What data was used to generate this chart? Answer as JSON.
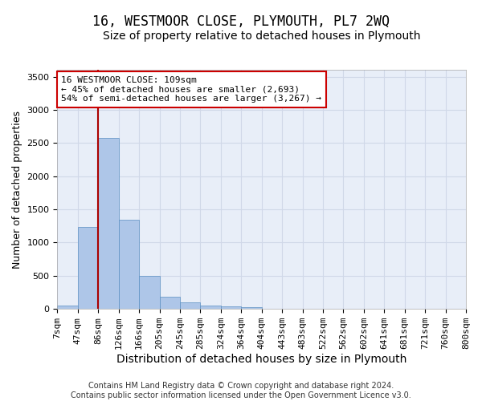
{
  "title": "16, WESTMOOR CLOSE, PLYMOUTH, PL7 2WQ",
  "subtitle": "Size of property relative to detached houses in Plymouth",
  "xlabel": "Distribution of detached houses by size in Plymouth",
  "ylabel": "Number of detached properties",
  "footer_line1": "Contains HM Land Registry data © Crown copyright and database right 2024.",
  "footer_line2": "Contains public sector information licensed under the Open Government Licence v3.0.",
  "bin_labels": [
    "7sqm",
    "47sqm",
    "86sqm",
    "126sqm",
    "166sqm",
    "205sqm",
    "245sqm",
    "285sqm",
    "324sqm",
    "364sqm",
    "404sqm",
    "443sqm",
    "483sqm",
    "522sqm",
    "562sqm",
    "602sqm",
    "641sqm",
    "681sqm",
    "721sqm",
    "760sqm",
    "800sqm"
  ],
  "bar_heights": [
    50,
    1230,
    2580,
    1340,
    500,
    190,
    100,
    50,
    40,
    30,
    0,
    0,
    0,
    0,
    0,
    0,
    0,
    0,
    0,
    0
  ],
  "bar_color": "#aec6e8",
  "bar_edge_color": "#5a8fc2",
  "grid_color": "#d0d8e8",
  "background_color": "#e8eef8",
  "vline_x": 2.0,
  "vline_color": "#aa0000",
  "annotation_text": "16 WESTMOOR CLOSE: 109sqm\n← 45% of detached houses are smaller (2,693)\n54% of semi-detached houses are larger (3,267) →",
  "annotation_box_color": "#ffffff",
  "annotation_box_edge_color": "#cc0000",
  "ylim": [
    0,
    3600
  ],
  "yticks": [
    0,
    500,
    1000,
    1500,
    2000,
    2500,
    3000,
    3500
  ],
  "title_fontsize": 12,
  "subtitle_fontsize": 10,
  "xlabel_fontsize": 10,
  "ylabel_fontsize": 9,
  "tick_fontsize": 8,
  "annotation_fontsize": 8,
  "footer_fontsize": 7
}
